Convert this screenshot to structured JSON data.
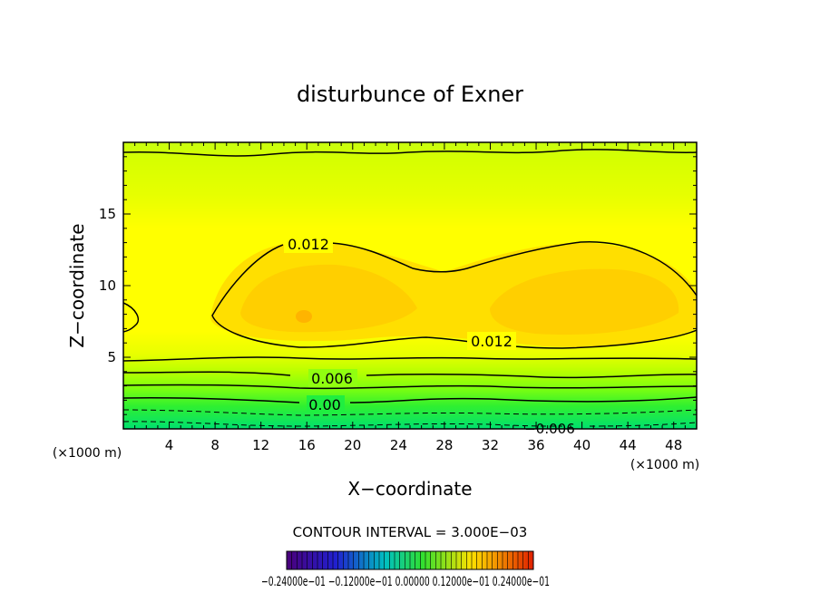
{
  "chart_data": {
    "type": "contour",
    "title": "disturbunce of Exner",
    "xlabel": "X−coordinate",
    "ylabel": "Z−coordinate",
    "x_unit_left": "(×1000 m)",
    "x_unit_right": "(×1000 m)",
    "xlim": [
      0,
      50
    ],
    "ylim": [
      0,
      20
    ],
    "x_ticks": [
      4,
      8,
      12,
      16,
      20,
      24,
      28,
      32,
      36,
      40,
      44,
      48
    ],
    "y_ticks": [
      5,
      10,
      15
    ],
    "contour_interval_text": "CONTOUR INTERVAL = 3.000E−03",
    "contour_labels": [
      {
        "text": "0.012",
        "x": 16.2,
        "z": 12.8
      },
      {
        "text": "0.012",
        "x": 32.5,
        "z": 6.1
      },
      {
        "text": "0.006",
        "x": 18.0,
        "z": 3.5
      },
      {
        "text": "0.00",
        "x": 17.5,
        "z": 1.7
      },
      {
        "text": "−0.006",
        "x": 37.5,
        "z": 0.1
      }
    ],
    "colorbar_labels": "−0.24000e−01  −0.12000e−01  0.00000  0.12000e−01  0.24000e−01",
    "colors": {
      "fill_high": "#ffd400",
      "fill_mid": "#ffff00",
      "fill_top": "#d8ff00",
      "fill_low": "#00ee66",
      "line": "#000000"
    }
  }
}
